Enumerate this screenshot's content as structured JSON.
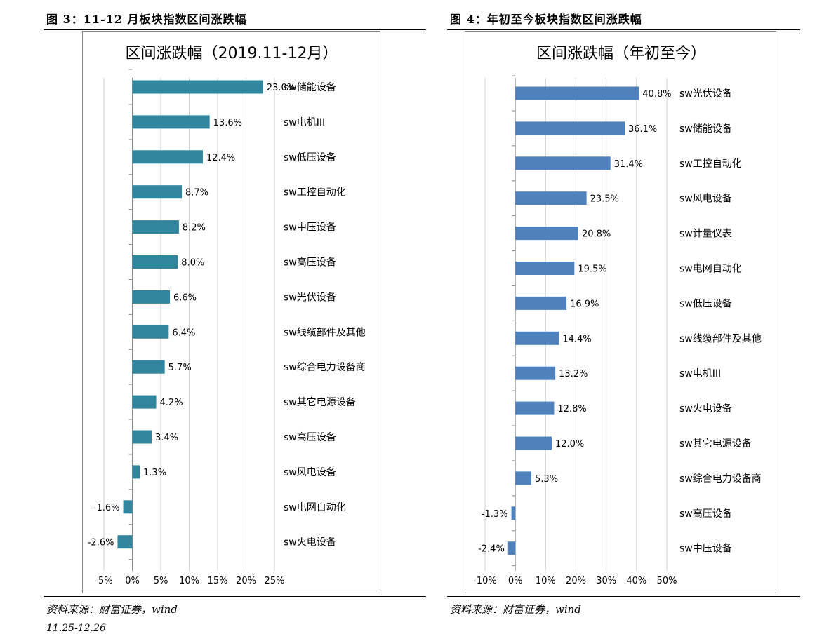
{
  "left_panel": {
    "caption": "图 3：11-12 月板块指数区间涨跌幅",
    "source": "资料来源：财富证券，wind"
  },
  "right_panel": {
    "caption": "图 4：年初至今板块指数区间涨跌幅",
    "source": "资料来源：财富证券，wind"
  },
  "footer_fragment": "11.25-12.26",
  "chart_data": [
    {
      "type": "bar",
      "orientation": "horizontal",
      "title": "区间涨跌幅（2019.11-12月）",
      "bar_color": "#31859C",
      "xlim": [
        -5,
        25
      ],
      "xticks": [
        "-5%",
        "0%",
        "5%",
        "10%",
        "15%",
        "20%",
        "25%"
      ],
      "grid": "vertical",
      "categories": [
        "sw储能设备",
        "sw电机III",
        "sw低压设备",
        "sw工控自动化",
        "sw中压设备",
        "sw高压设备",
        "sw光伏设备",
        "sw线缆部件及其他",
        "sw综合电力设备商",
        "sw其它电源设备",
        "sw高压设备",
        "sw风电设备",
        "sw电网自动化",
        "sw火电设备"
      ],
      "values": [
        23.0,
        13.6,
        12.4,
        8.7,
        8.2,
        8.0,
        6.6,
        6.4,
        5.7,
        4.2,
        3.4,
        1.3,
        -1.6,
        -2.6
      ],
      "labels": [
        "23.0%",
        "13.6%",
        "12.4%",
        "8.7%",
        "8.2%",
        "8.0%",
        "6.6%",
        "6.4%",
        "5.7%",
        "4.2%",
        "3.4%",
        "1.3%",
        "-1.6%",
        "-2.6%"
      ]
    },
    {
      "type": "bar",
      "orientation": "horizontal",
      "title": "区间涨跌幅（年初至今）",
      "bar_color": "#4F81BD",
      "xlim": [
        -10,
        50
      ],
      "xticks": [
        "-10%",
        "0%",
        "10%",
        "20%",
        "30%",
        "40%",
        "50%"
      ],
      "grid": "vertical",
      "categories": [
        "sw光伏设备",
        "sw储能设备",
        "sw工控自动化",
        "sw风电设备",
        "sw计量仪表",
        "sw电网自动化",
        "sw低压设备",
        "sw线缆部件及其他",
        "sw电机III",
        "sw火电设备",
        "sw其它电源设备",
        "sw综合电力设备商",
        "sw高压设备",
        "sw中压设备"
      ],
      "values": [
        40.8,
        36.1,
        31.4,
        23.5,
        20.8,
        19.5,
        16.9,
        14.4,
        13.2,
        12.8,
        12.0,
        5.3,
        -1.3,
        -2.4
      ],
      "labels": [
        "40.8%",
        "36.1%",
        "31.4%",
        "23.5%",
        "20.8%",
        "19.5%",
        "16.9%",
        "14.4%",
        "13.2%",
        "12.8%",
        "12.0%",
        "5.3%",
        "-1.3%",
        "-2.4%"
      ]
    }
  ]
}
